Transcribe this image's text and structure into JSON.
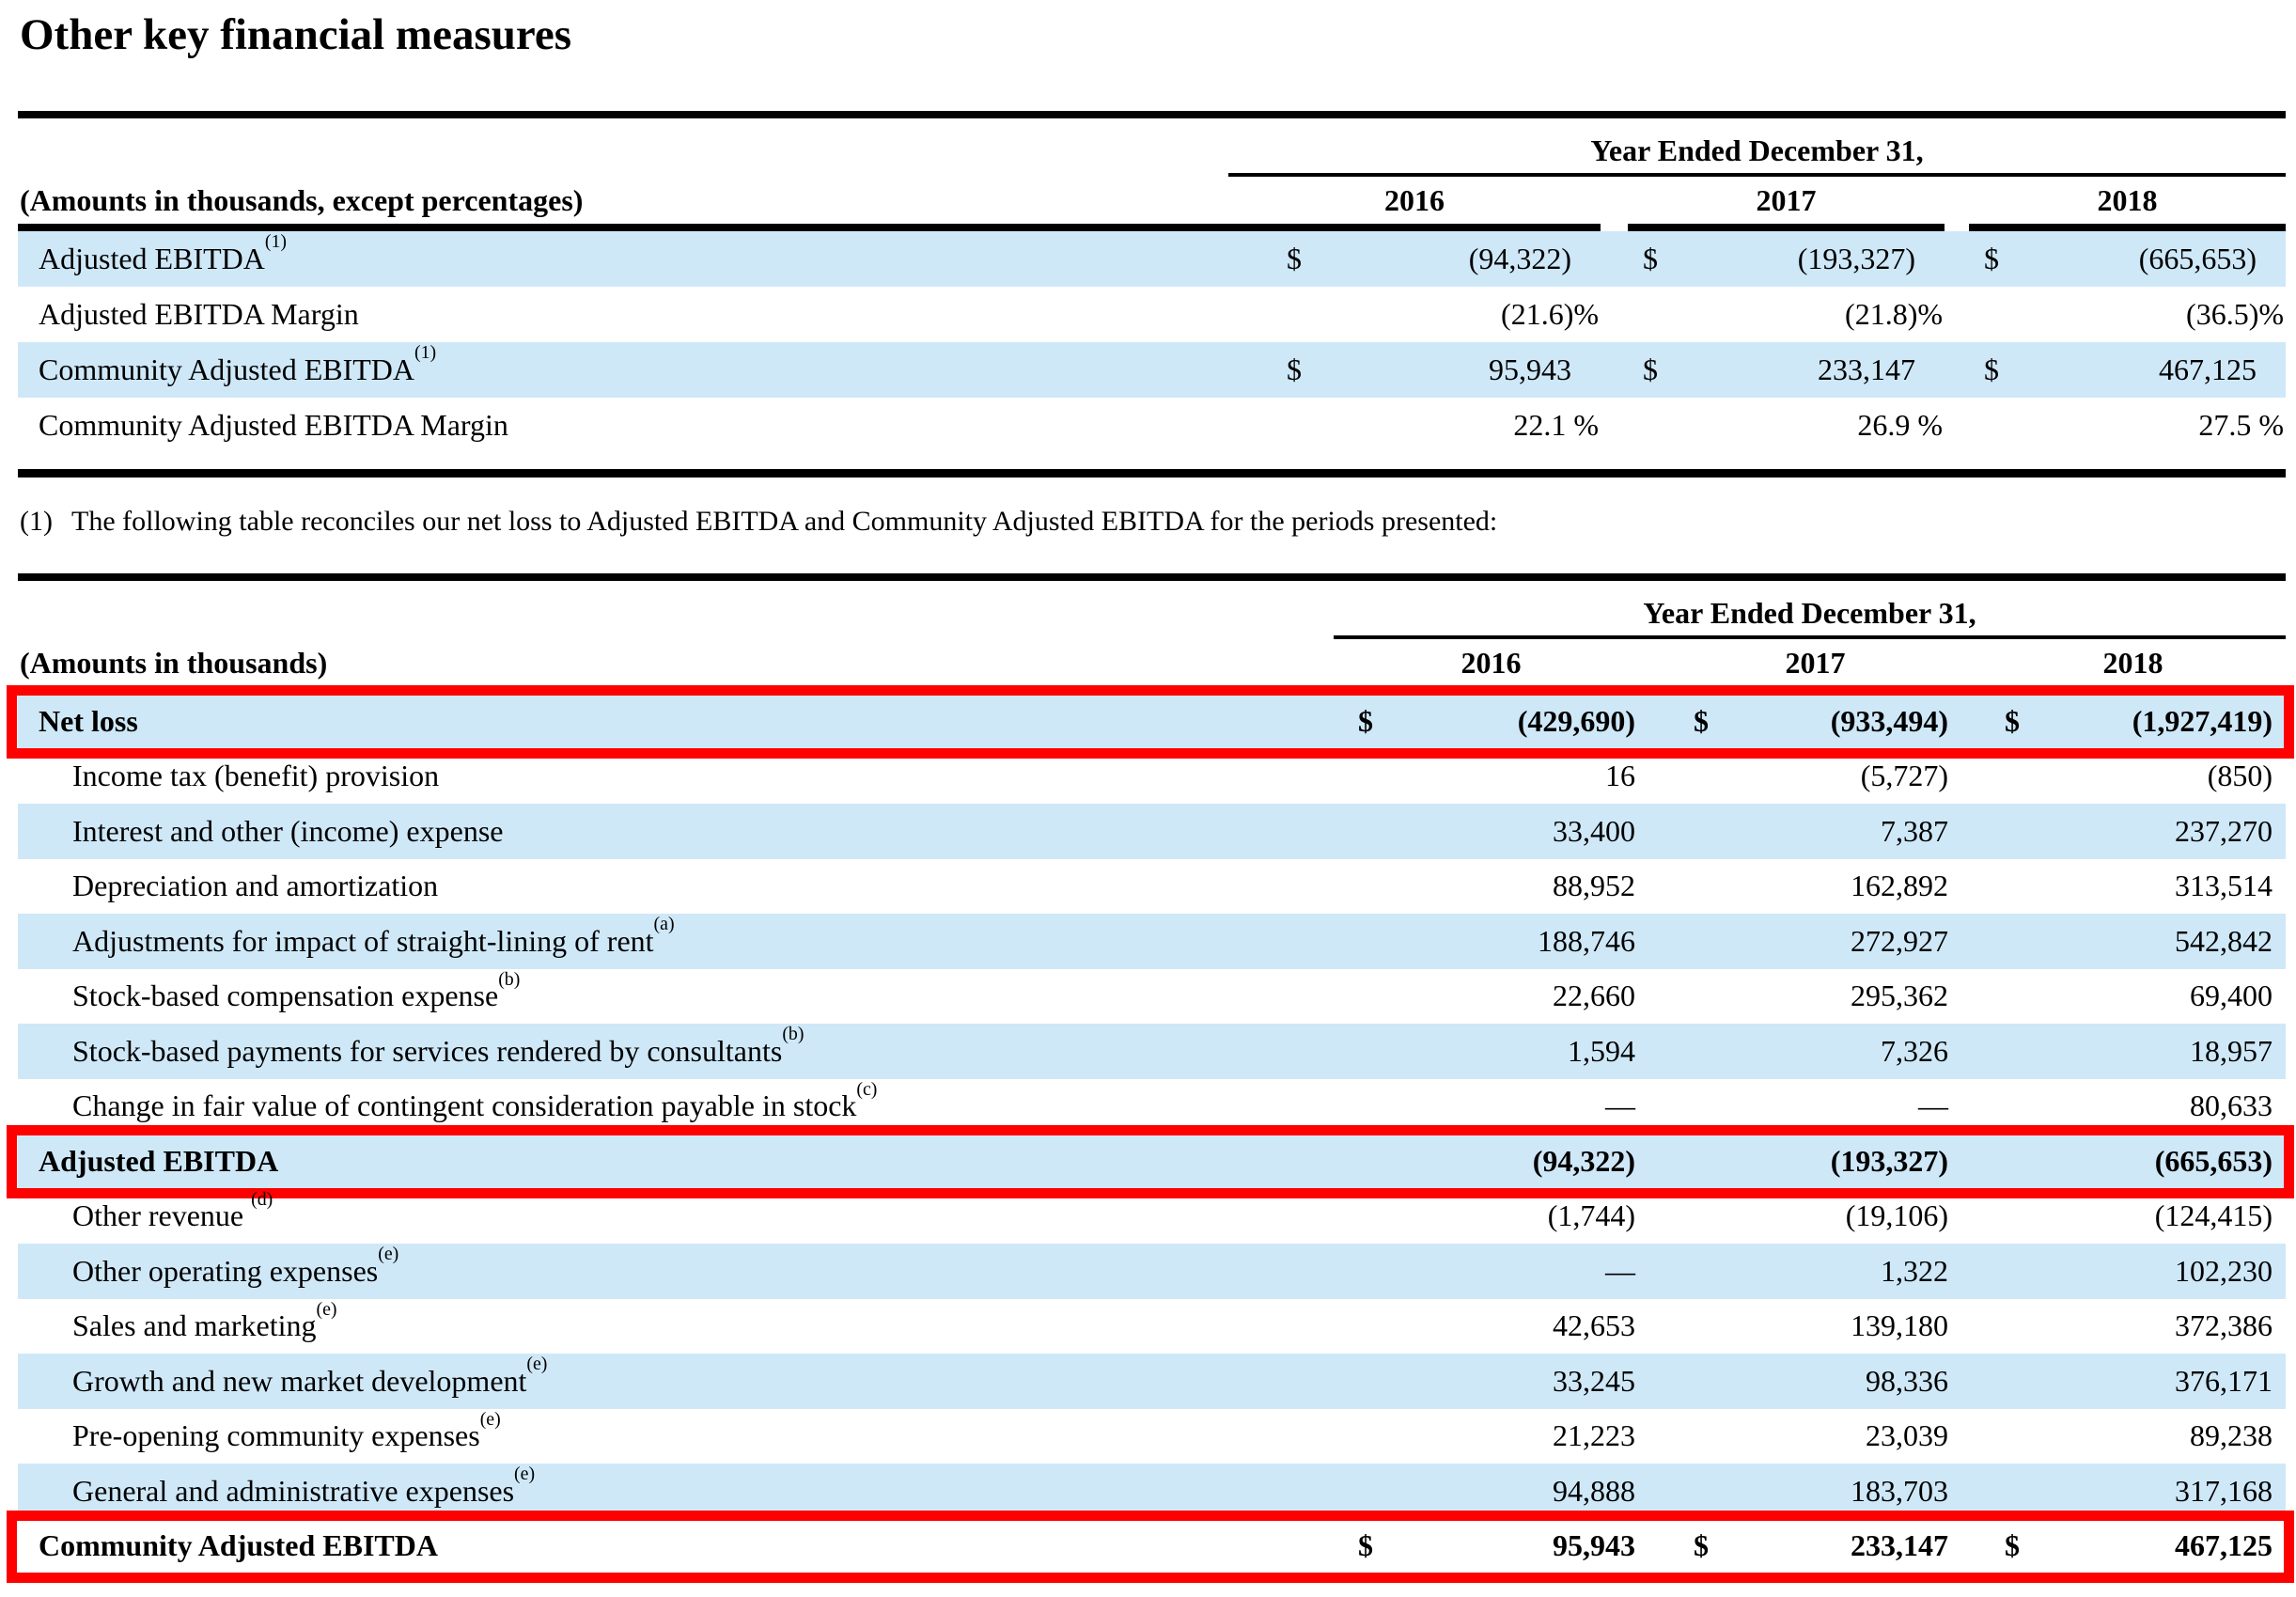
{
  "page": {
    "title": "Other key financial measures"
  },
  "currency_symbol": "$",
  "footnote": {
    "marker": "(1)",
    "text": "The following table reconciles our net loss to Adjusted EBITDA and Community Adjusted EBITDA for the periods presented:"
  },
  "table1": {
    "header": {
      "period": "Year Ended December 31,",
      "years": [
        "2016",
        "2017",
        "2018"
      ],
      "label": "(Amounts in thousands, except percentages)"
    },
    "rows": [
      {
        "label": "Adjusted EBITDA",
        "sup": "(1)",
        "dollar": true,
        "pct": false,
        "shaded": true,
        "bold": false,
        "boxed": false,
        "indent": false,
        "values": [
          "(94,322)",
          "(193,327)",
          "(665,653)"
        ]
      },
      {
        "label": "Adjusted EBITDA Margin",
        "dollar": false,
        "pct": true,
        "shaded": false,
        "bold": false,
        "boxed": false,
        "indent": false,
        "values": [
          "(21.6)%",
          "(21.8)%",
          "(36.5)%"
        ]
      },
      {
        "label": "Community Adjusted EBITDA",
        "sup": "(1)",
        "dollar": true,
        "pct": false,
        "shaded": true,
        "bold": false,
        "boxed": false,
        "indent": false,
        "values": [
          "95,943",
          "233,147",
          "467,125"
        ]
      },
      {
        "label": "Community Adjusted EBITDA Margin",
        "dollar": false,
        "pct": true,
        "shaded": false,
        "bold": false,
        "boxed": false,
        "indent": false,
        "values": [
          "22.1 %",
          "26.9 %",
          "27.5 %"
        ]
      }
    ]
  },
  "table2": {
    "header": {
      "period": "Year Ended December 31,",
      "years": [
        "2016",
        "2017",
        "2018"
      ],
      "label": "(Amounts in thousands)"
    },
    "rows": [
      {
        "label": "Net loss",
        "dollar": true,
        "pct": false,
        "shaded": true,
        "bold": true,
        "boxed": true,
        "indent": false,
        "values": [
          "(429,690)",
          "(933,494)",
          "(1,927,419)"
        ]
      },
      {
        "label": "Income tax (benefit) provision",
        "dollar": false,
        "pct": false,
        "shaded": false,
        "bold": false,
        "boxed": false,
        "indent": true,
        "values": [
          "16",
          "(5,727)",
          "(850)"
        ]
      },
      {
        "label": "Interest and other (income) expense",
        "dollar": false,
        "pct": false,
        "shaded": true,
        "bold": false,
        "boxed": false,
        "indent": true,
        "values": [
          "33,400",
          "7,387",
          "237,270"
        ]
      },
      {
        "label": "Depreciation and amortization",
        "dollar": false,
        "pct": false,
        "shaded": false,
        "bold": false,
        "boxed": false,
        "indent": true,
        "values": [
          "88,952",
          "162,892",
          "313,514"
        ]
      },
      {
        "label": "Adjustments for impact of straight-lining of rent",
        "sup": "(a)",
        "dollar": false,
        "pct": false,
        "shaded": true,
        "bold": false,
        "boxed": false,
        "indent": true,
        "values": [
          "188,746",
          "272,927",
          "542,842"
        ]
      },
      {
        "label": "Stock-based compensation expense",
        "sup": "(b)",
        "dollar": false,
        "pct": false,
        "shaded": false,
        "bold": false,
        "boxed": false,
        "indent": true,
        "values": [
          "22,660",
          "295,362",
          "69,400"
        ]
      },
      {
        "label": "Stock-based payments for services rendered by consultants",
        "sup": "(b)",
        "dollar": false,
        "pct": false,
        "shaded": true,
        "bold": false,
        "boxed": false,
        "indent": true,
        "values": [
          "1,594",
          "7,326",
          "18,957"
        ]
      },
      {
        "label": "Change in fair value of contingent consideration payable in stock",
        "sup": "(c)",
        "dollar": false,
        "pct": false,
        "shaded": false,
        "bold": false,
        "boxed": false,
        "indent": true,
        "values": [
          "—",
          "—",
          "80,633"
        ]
      },
      {
        "label": "Adjusted EBITDA",
        "dollar": false,
        "pct": false,
        "shaded": true,
        "bold": true,
        "boxed": true,
        "indent": false,
        "values": [
          "(94,322)",
          "(193,327)",
          "(665,653)"
        ]
      },
      {
        "label": "Other revenue ",
        "sup": "(d)",
        "dollar": false,
        "pct": false,
        "shaded": false,
        "bold": false,
        "boxed": false,
        "indent": true,
        "values": [
          "(1,744)",
          "(19,106)",
          "(124,415)"
        ]
      },
      {
        "label": "Other operating expenses",
        "sup": "(e)",
        "dollar": false,
        "pct": false,
        "shaded": true,
        "bold": false,
        "boxed": false,
        "indent": true,
        "values": [
          "—",
          "1,322",
          "102,230"
        ]
      },
      {
        "label": "Sales and marketing",
        "sup": "(e)",
        "dollar": false,
        "pct": false,
        "shaded": false,
        "bold": false,
        "boxed": false,
        "indent": true,
        "values": [
          "42,653",
          "139,180",
          "372,386"
        ]
      },
      {
        "label": "Growth and new market development",
        "sup": "(e)",
        "dollar": false,
        "pct": false,
        "shaded": true,
        "bold": false,
        "boxed": false,
        "indent": true,
        "values": [
          "33,245",
          "98,336",
          "376,171"
        ]
      },
      {
        "label": "Pre-opening community expenses",
        "sup": "(e)",
        "dollar": false,
        "pct": false,
        "shaded": false,
        "bold": false,
        "boxed": false,
        "indent": true,
        "values": [
          "21,223",
          "23,039",
          "89,238"
        ]
      },
      {
        "label": "General and administrative expenses",
        "sup": "(e)",
        "dollar": false,
        "pct": false,
        "shaded": true,
        "bold": false,
        "boxed": false,
        "indent": true,
        "values": [
          "94,888",
          "183,703",
          "317,168"
        ]
      },
      {
        "label": "Community Adjusted EBITDA",
        "dollar": true,
        "pct": false,
        "shaded": false,
        "bold": true,
        "boxed": true,
        "indent": false,
        "values": [
          "95,943",
          "233,147",
          "467,125"
        ]
      }
    ]
  }
}
